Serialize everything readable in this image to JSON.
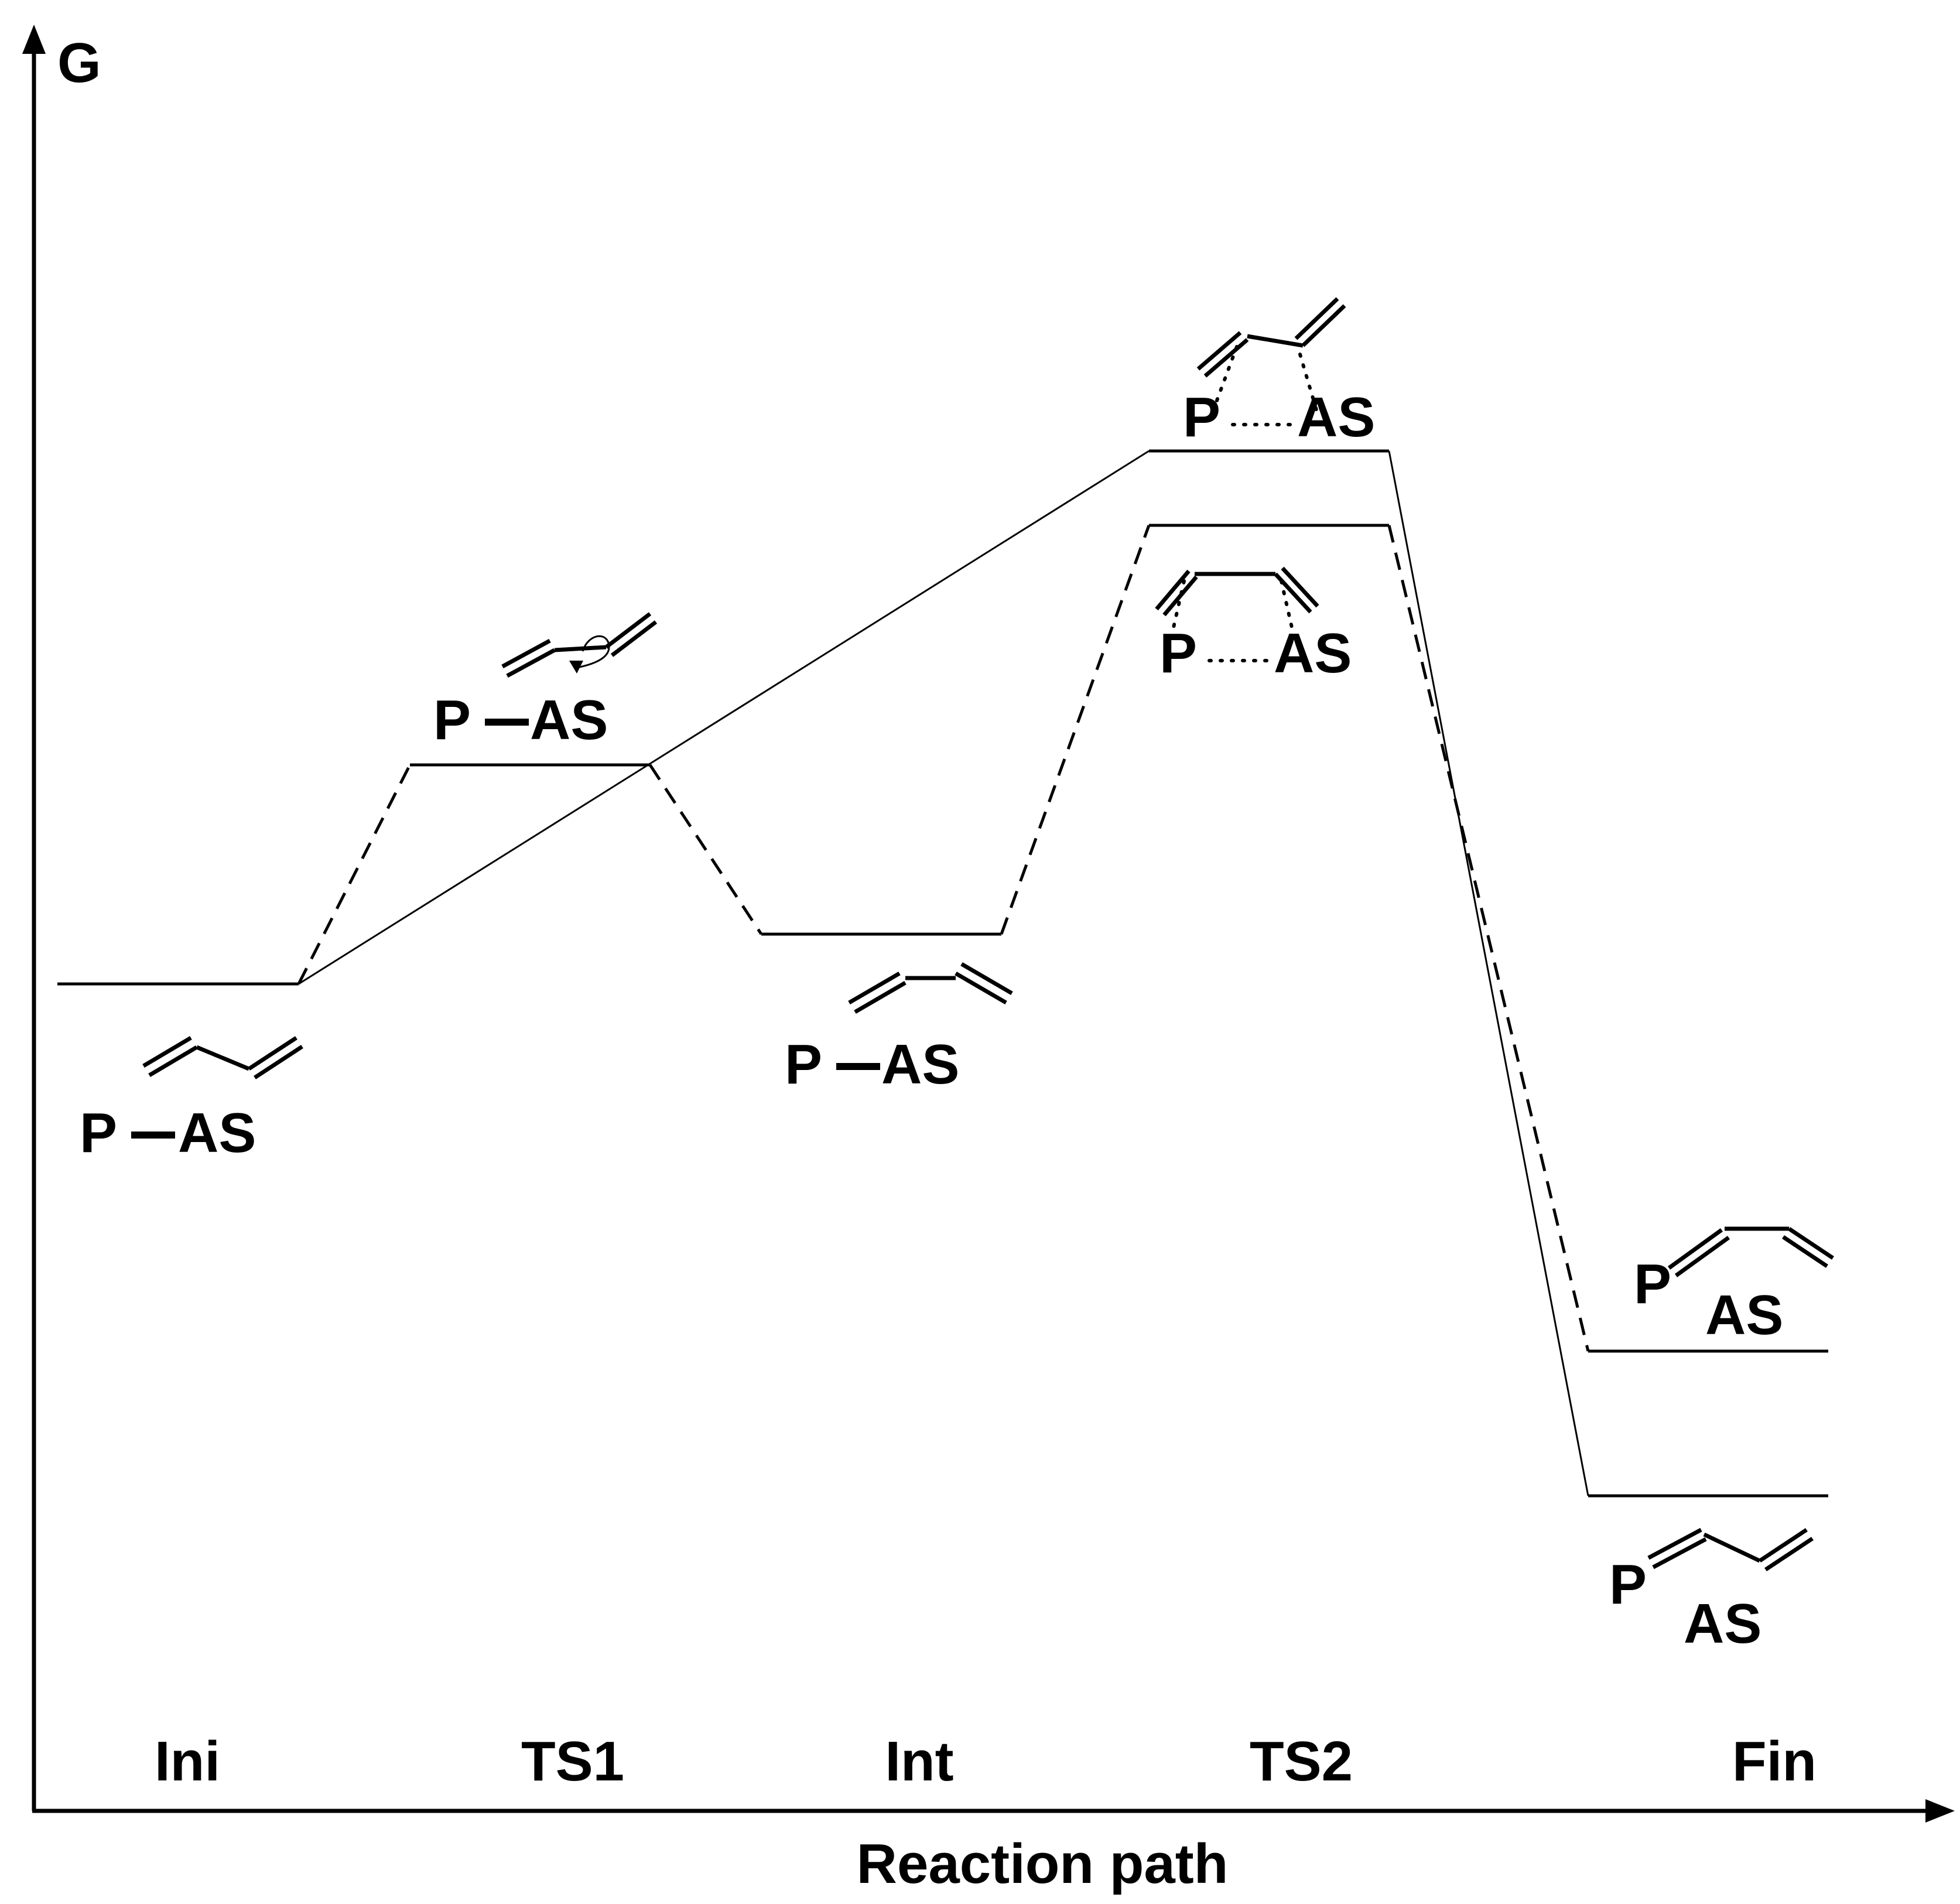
{
  "axes": {
    "y_label": "G",
    "x_label": "Reaction path"
  },
  "stages": [
    "Ini",
    "TS1",
    "Int",
    "TS2",
    "Fin"
  ],
  "species": {
    "ini": {
      "left": "P",
      "right": "AS"
    },
    "ts1": {
      "left": "P",
      "right": "AS"
    },
    "int": {
      "left": "P",
      "right": "AS"
    },
    "ts2_upper": {
      "left": "P",
      "right": "AS"
    },
    "ts2_lower": {
      "left": "P",
      "right": "AS"
    },
    "fin_upper": {
      "left": "P",
      "right": "AS"
    },
    "fin_lower": {
      "left": "P",
      "right": "AS"
    }
  },
  "pathways": {
    "solid": {
      "style": "solid",
      "levels": [
        "Ini",
        "TS2",
        "Fin"
      ]
    },
    "dashed": {
      "style": "dashed",
      "levels": [
        "Ini",
        "TS1",
        "Int",
        "TS2",
        "Fin"
      ]
    }
  },
  "colors": {
    "ink": "#000000",
    "background": "#ffffff"
  }
}
